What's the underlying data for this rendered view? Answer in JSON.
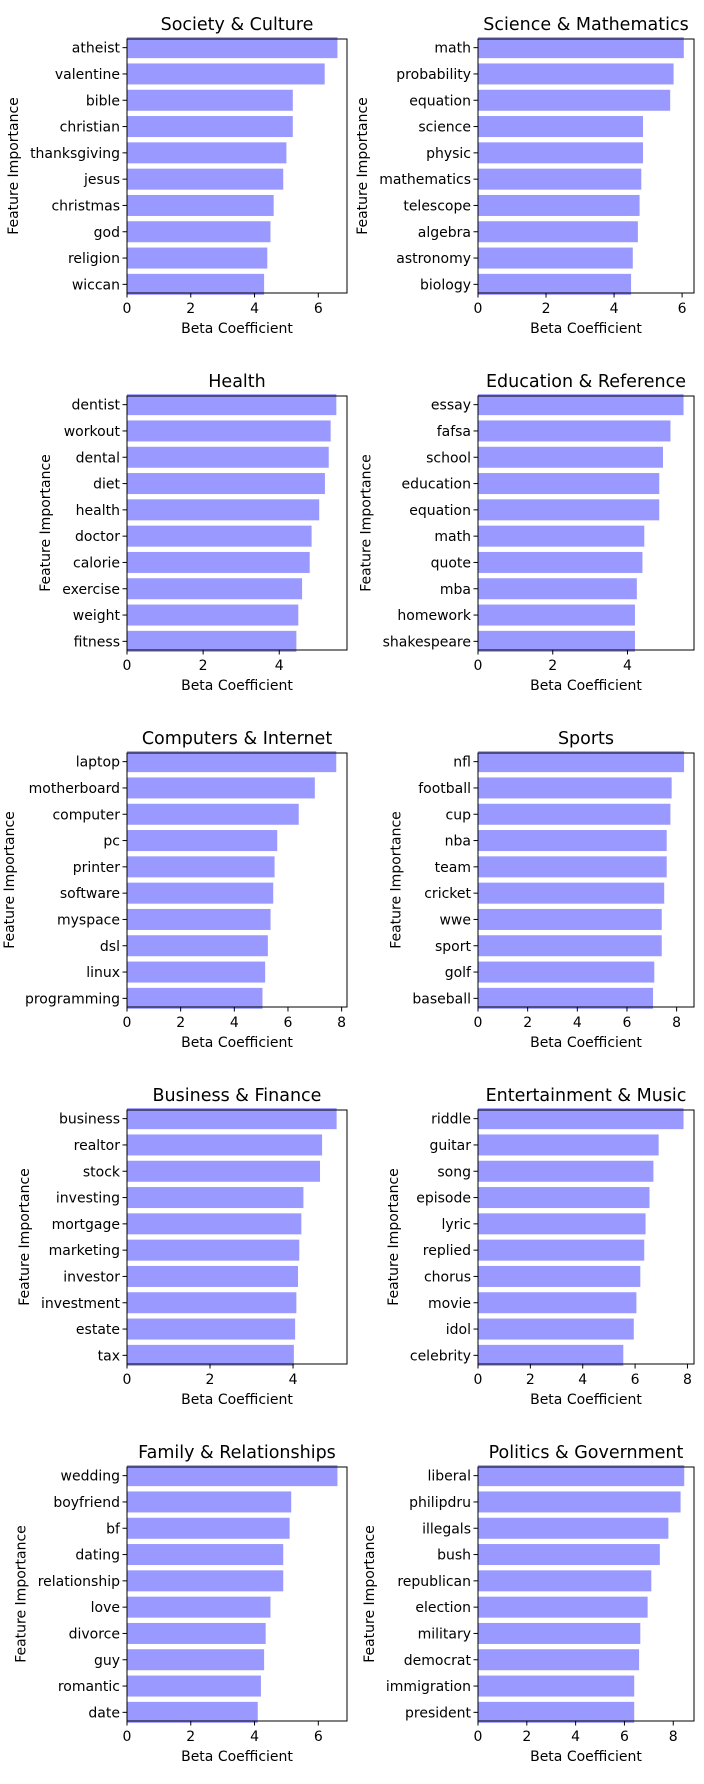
{
  "bar_color": "#9999ff",
  "chart_data": [
    {
      "type": "bar",
      "orientation": "horizontal",
      "title": "Society & Culture",
      "xlabel": "Beta Coefficient",
      "ylabel": "Feature Importance",
      "xlim": [
        0,
        6.9
      ],
      "xticks": [
        0,
        2,
        4,
        6
      ],
      "categories": [
        "atheist",
        "valentine",
        "bible",
        "christian",
        "thanksgiving",
        "jesus",
        "christmas",
        "god",
        "religion",
        "wiccan"
      ],
      "values": [
        6.6,
        6.2,
        5.2,
        5.2,
        5.0,
        4.9,
        4.6,
        4.5,
        4.4,
        4.3
      ]
    },
    {
      "type": "bar",
      "orientation": "horizontal",
      "title": "Science & Mathematics",
      "xlabel": "Beta Coefficient",
      "ylabel": "Feature Importance",
      "xlim": [
        0,
        6.35
      ],
      "xticks": [
        0,
        2,
        4,
        6
      ],
      "categories": [
        "math",
        "probability",
        "equation",
        "science",
        "physic",
        "mathematics",
        "telescope",
        "algebra",
        "astronomy",
        "biology"
      ],
      "values": [
        6.05,
        5.75,
        5.65,
        4.85,
        4.85,
        4.8,
        4.75,
        4.7,
        4.55,
        4.5
      ]
    },
    {
      "type": "bar",
      "orientation": "horizontal",
      "title": "Health",
      "xlabel": "Beta Coefficient",
      "ylabel": "Feature Importance",
      "xlim": [
        0,
        5.78
      ],
      "xticks": [
        0,
        2,
        4
      ],
      "categories": [
        "dentist",
        "workout",
        "dental",
        "diet",
        "health",
        "doctor",
        "calorie",
        "exercise",
        "weight",
        "fitness"
      ],
      "values": [
        5.5,
        5.35,
        5.3,
        5.2,
        5.05,
        4.85,
        4.8,
        4.6,
        4.5,
        4.45
      ]
    },
    {
      "type": "bar",
      "orientation": "horizontal",
      "title": "Education & Reference",
      "xlabel": "Beta Coefficient",
      "ylabel": "Feature Importance",
      "xlim": [
        0,
        5.78
      ],
      "xticks": [
        0,
        2,
        4
      ],
      "categories": [
        "essay",
        "fafsa",
        "school",
        "education",
        "equation",
        "math",
        "quote",
        "mba",
        "homework",
        "shakespeare"
      ],
      "values": [
        5.5,
        5.15,
        4.95,
        4.85,
        4.85,
        4.45,
        4.4,
        4.25,
        4.2,
        4.2
      ]
    },
    {
      "type": "bar",
      "orientation": "horizontal",
      "title": "Computers & Internet",
      "xlabel": "Beta Coefficient",
      "ylabel": "Feature Importance",
      "xlim": [
        0,
        8.2
      ],
      "xticks": [
        0,
        2,
        4,
        6,
        8
      ],
      "categories": [
        "laptop",
        "motherboard",
        "computer",
        "pc",
        "printer",
        "software",
        "myspace",
        "dsl",
        "linux",
        "programming"
      ],
      "values": [
        7.8,
        7.0,
        6.4,
        5.6,
        5.5,
        5.45,
        5.35,
        5.25,
        5.15,
        5.05
      ]
    },
    {
      "type": "bar",
      "orientation": "horizontal",
      "title": "Sports",
      "xlabel": "Beta Coefficient",
      "ylabel": "Feature Importance",
      "xlim": [
        0,
        8.7
      ],
      "xticks": [
        0,
        2,
        4,
        6,
        8
      ],
      "categories": [
        "nfl",
        "football",
        "cup",
        "nba",
        "team",
        "cricket",
        "wwe",
        "sport",
        "golf",
        "baseball"
      ],
      "values": [
        8.3,
        7.8,
        7.75,
        7.6,
        7.6,
        7.5,
        7.4,
        7.4,
        7.1,
        7.05
      ]
    },
    {
      "type": "bar",
      "orientation": "horizontal",
      "title": "Business & Finance",
      "xlabel": "Beta Coefficient",
      "ylabel": "Feature Importance",
      "xlim": [
        0,
        5.3
      ],
      "xticks": [
        0,
        2,
        4
      ],
      "categories": [
        "business",
        "realtor",
        "stock",
        "investing",
        "mortgage",
        "marketing",
        "investor",
        "investment",
        "estate",
        "tax"
      ],
      "values": [
        5.05,
        4.7,
        4.65,
        4.25,
        4.2,
        4.15,
        4.12,
        4.08,
        4.05,
        4.02
      ]
    },
    {
      "type": "bar",
      "orientation": "horizontal",
      "title": "Entertainment & Music",
      "xlabel": "Beta Coefficient",
      "ylabel": "Feature Importance",
      "xlim": [
        0,
        8.25
      ],
      "xticks": [
        0,
        2,
        4,
        6,
        8
      ],
      "categories": [
        "riddle",
        "guitar",
        "song",
        "episode",
        "lyric",
        "replied",
        "chorus",
        "movie",
        "idol",
        "celebrity"
      ],
      "values": [
        7.85,
        6.9,
        6.7,
        6.55,
        6.4,
        6.35,
        6.2,
        6.05,
        5.95,
        5.55
      ]
    },
    {
      "type": "bar",
      "orientation": "horizontal",
      "title": "Family & Relationships",
      "xlabel": "Beta Coefficient",
      "ylabel": "Feature Importance",
      "xlim": [
        0,
        6.9
      ],
      "xticks": [
        0,
        2,
        4,
        6
      ],
      "categories": [
        "wedding",
        "boyfriend",
        "bf",
        "dating",
        "relationship",
        "love",
        "divorce",
        "guy",
        "romantic",
        "date"
      ],
      "values": [
        6.6,
        5.15,
        5.1,
        4.9,
        4.9,
        4.5,
        4.35,
        4.3,
        4.2,
        4.1
      ]
    },
    {
      "type": "bar",
      "orientation": "horizontal",
      "title": "Politics & Government",
      "xlabel": "Beta Coefficient",
      "ylabel": "Feature Importance",
      "xlim": [
        0,
        8.85
      ],
      "xticks": [
        0,
        2,
        4,
        6,
        8
      ],
      "categories": [
        "liberal",
        "philipdru",
        "illegals",
        "bush",
        "republican",
        "election",
        "military",
        "democrat",
        "immigration",
        "president"
      ],
      "values": [
        8.45,
        8.3,
        7.8,
        7.45,
        7.1,
        6.95,
        6.65,
        6.6,
        6.4,
        6.4
      ]
    }
  ]
}
